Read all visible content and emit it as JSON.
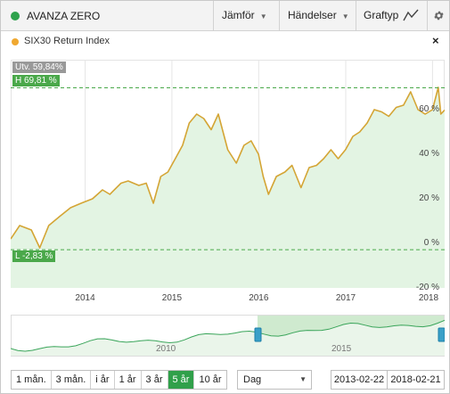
{
  "header": {
    "instrument": "AVANZA ZERO",
    "instrument_color": "#2fa24d",
    "compare_label": "Jämför",
    "events_label": "Händelser",
    "graphtype_label": "Graftyp"
  },
  "series_row": {
    "name": "SIX30 Return Index",
    "color": "#f0a830",
    "close_label": "×"
  },
  "tags": {
    "change": "Utv. 59,84%",
    "high": "H 69,81 %",
    "low": "L -2,83 %"
  },
  "chart_data": {
    "type": "area",
    "line_color": "#d4a535",
    "fill_color": "#e3f4e3",
    "ylim": [
      -20,
      80
    ],
    "y_ticks": [
      -20,
      0,
      20,
      40,
      60
    ],
    "y_tick_labels": [
      "-20 %",
      "0 %",
      "20 %",
      "40 %",
      "60 %"
    ],
    "x_tick_labels": [
      "2014",
      "2015",
      "2016",
      "2017",
      "2018"
    ],
    "x_tick_dates": [
      "2014-01-01",
      "2015-01-01",
      "2016-01-01",
      "2017-01-01",
      "2018-01-01"
    ],
    "x_start": "2013-02-22",
    "x_end": "2018-02-21",
    "high": 69.81,
    "low": -2.83,
    "series": [
      {
        "x": [
          "2013-02-22",
          "2013-04-01",
          "2013-05-20",
          "2013-06-24",
          "2013-08-01",
          "2013-09-15",
          "2013-11-01",
          "2013-12-15",
          "2014-02-01",
          "2014-03-15",
          "2014-04-15",
          "2014-06-01",
          "2014-07-01",
          "2014-08-15",
          "2014-09-15",
          "2014-10-15",
          "2014-11-15",
          "2014-12-15",
          "2015-01-15",
          "2015-02-15",
          "2015-03-15",
          "2015-04-15",
          "2015-05-15",
          "2015-06-15",
          "2015-07-15",
          "2015-08-24",
          "2015-09-29",
          "2015-10-31",
          "2015-11-30",
          "2015-12-31",
          "2016-01-20",
          "2016-02-11",
          "2016-03-15",
          "2016-04-20",
          "2016-05-20",
          "2016-06-27",
          "2016-07-31",
          "2016-08-31",
          "2016-09-30",
          "2016-10-31",
          "2016-11-30",
          "2016-12-31",
          "2017-01-31",
          "2017-03-01",
          "2017-04-01",
          "2017-05-01",
          "2017-06-01",
          "2017-07-01",
          "2017-08-01",
          "2017-09-01",
          "2017-10-01",
          "2017-11-01",
          "2017-12-01",
          "2018-01-01",
          "2018-01-25",
          "2018-02-05",
          "2018-02-21"
        ],
        "y": [
          2,
          8,
          6,
          -2,
          8,
          12,
          16,
          18,
          20,
          24,
          22,
          27,
          28,
          26,
          27,
          18,
          30,
          32,
          38,
          44,
          54,
          58,
          56,
          51,
          58,
          42,
          36,
          44,
          46,
          40,
          30,
          22,
          30,
          32,
          35,
          25,
          34,
          35,
          38,
          42,
          38,
          42,
          48,
          50,
          54,
          60,
          59,
          57,
          61,
          62,
          68,
          60,
          58,
          60,
          70,
          58,
          59.84
        ]
      }
    ]
  },
  "navigator": {
    "x_labels": [
      "2010",
      "2015"
    ],
    "selection_color": "#cfeacf"
  },
  "controls": {
    "periods": [
      "1 mån.",
      "3 mån.",
      "i år",
      "1 år",
      "3 år",
      "5 år",
      "10 år"
    ],
    "active_period": "5 år",
    "resolution": "Dag",
    "date_from": "2013-02-22",
    "date_to": "2018-02-21",
    "active_color": "#30a04a"
  }
}
